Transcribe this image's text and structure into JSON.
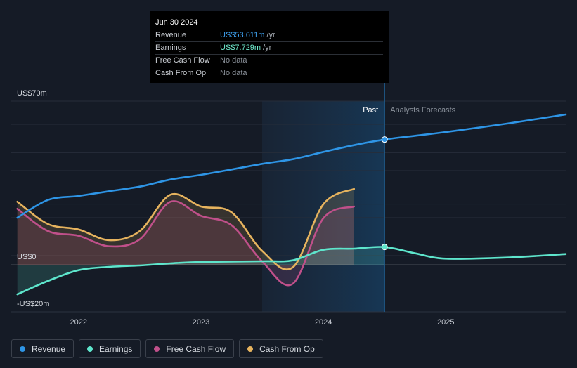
{
  "tooltip": {
    "date": "Jun 30 2024",
    "rows": [
      {
        "label": "Revenue",
        "value": "US$53.611m",
        "unit": "/yr"
      },
      {
        "label": "Earnings",
        "value": "US$7.729m",
        "unit": "/yr"
      },
      {
        "label": "Free Cash Flow",
        "value": "No data",
        "unit": ""
      },
      {
        "label": "Cash From Op",
        "value": "No data",
        "unit": ""
      }
    ]
  },
  "legend": [
    {
      "label": "Revenue",
      "color": "#2e95e6"
    },
    {
      "label": "Earnings",
      "color": "#5ee6cc"
    },
    {
      "label": "Free Cash Flow",
      "color": "#c0508a"
    },
    {
      "label": "Cash From Op",
      "color": "#e6b35e"
    }
  ],
  "chart_data": {
    "type": "line",
    "title": "",
    "y_tick_labels": [
      "US$70m",
      "US$0",
      "-US$20m"
    ],
    "ylim": [
      -20,
      70
    ],
    "xlim": [
      2021.45,
      2025.98
    ],
    "x_tick_labels": [
      {
        "label": "2022",
        "x": 2022.0
      },
      {
        "label": "2023",
        "x": 2023.0
      },
      {
        "label": "2024",
        "x": 2024.0
      },
      {
        "label": "2025",
        "x": 2025.0
      }
    ],
    "past_label": "Past",
    "forecast_label": "Analysts Forecasts",
    "highlight_range": [
      2023.5,
      2024.5
    ],
    "divider_x": 2024.5,
    "series": [
      {
        "name": "Revenue",
        "color": "#2e95e6",
        "points": [
          [
            2021.5,
            20.2
          ],
          [
            2021.75,
            27.8
          ],
          [
            2022.0,
            29.5
          ],
          [
            2022.25,
            31.5
          ],
          [
            2022.5,
            33.5
          ],
          [
            2022.75,
            36.5
          ],
          [
            2023.0,
            38.5
          ],
          [
            2023.25,
            40.8
          ],
          [
            2023.5,
            43.2
          ],
          [
            2023.75,
            45.2
          ],
          [
            2024.0,
            48.3
          ],
          [
            2024.25,
            51.2
          ],
          [
            2024.5,
            53.6
          ],
          [
            2024.75,
            55.2
          ],
          [
            2025.0,
            56.8
          ],
          [
            2025.5,
            60.4
          ],
          [
            2025.98,
            64.3
          ]
        ]
      },
      {
        "name": "Earnings",
        "color": "#5ee6cc",
        "points": [
          [
            2021.5,
            -12.5
          ],
          [
            2021.75,
            -6.8
          ],
          [
            2022.0,
            -2.2
          ],
          [
            2022.25,
            -0.8
          ],
          [
            2022.5,
            -0.2
          ],
          [
            2022.75,
            0.7
          ],
          [
            2023.0,
            1.3
          ],
          [
            2023.5,
            1.6
          ],
          [
            2023.75,
            2.0
          ],
          [
            2024.0,
            6.5
          ],
          [
            2024.25,
            7.0
          ],
          [
            2024.5,
            7.7
          ],
          [
            2024.75,
            5.0
          ],
          [
            2025.0,
            2.7
          ],
          [
            2025.5,
            3.2
          ],
          [
            2025.98,
            4.7
          ]
        ]
      },
      {
        "name": "Free Cash Flow",
        "color": "#c0508a",
        "points": [
          [
            2021.5,
            24.0
          ],
          [
            2021.75,
            14.5
          ],
          [
            2022.0,
            12.5
          ],
          [
            2022.25,
            8.0
          ],
          [
            2022.5,
            11.0
          ],
          [
            2022.75,
            27.0
          ],
          [
            2023.0,
            21.0
          ],
          [
            2023.25,
            17.0
          ],
          [
            2023.5,
            1.5
          ],
          [
            2023.75,
            -8.0
          ],
          [
            2024.0,
            20.0
          ],
          [
            2024.25,
            25.0
          ]
        ]
      },
      {
        "name": "Cash From Op",
        "color": "#e6b35e",
        "points": [
          [
            2021.5,
            27.0
          ],
          [
            2021.75,
            17.5
          ],
          [
            2022.0,
            15.2
          ],
          [
            2022.25,
            10.6
          ],
          [
            2022.5,
            14.5
          ],
          [
            2022.75,
            30.0
          ],
          [
            2023.0,
            25.0
          ],
          [
            2023.25,
            22.5
          ],
          [
            2023.5,
            6.0
          ],
          [
            2023.75,
            -1.0
          ],
          [
            2024.0,
            26.0
          ],
          [
            2024.25,
            32.5
          ]
        ]
      }
    ],
    "markers": [
      {
        "series": "Revenue",
        "x": 2024.5,
        "y": 53.6
      },
      {
        "series": "Earnings",
        "x": 2024.5,
        "y": 7.7
      }
    ]
  }
}
